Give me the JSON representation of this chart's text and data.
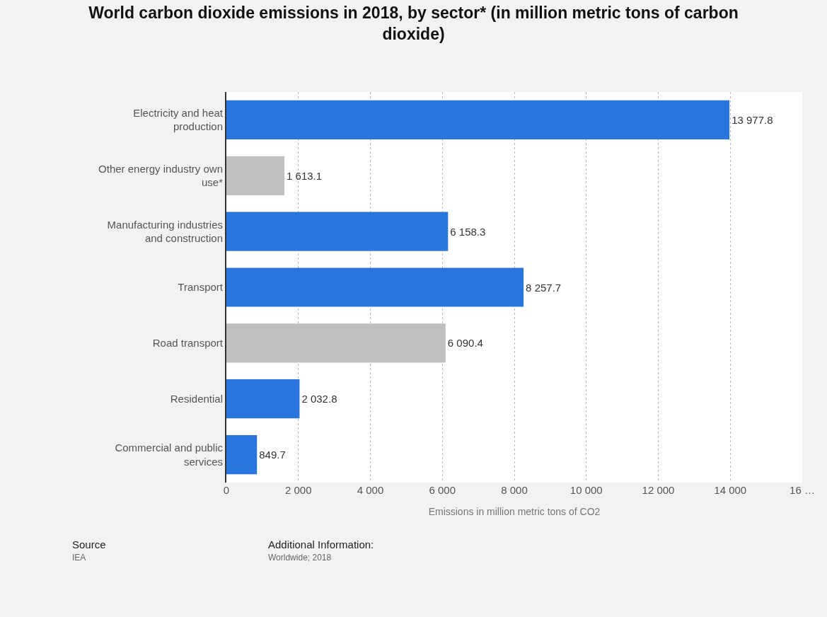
{
  "chart_data": {
    "type": "bar",
    "orientation": "horizontal",
    "title": "World carbon dioxide emissions in 2018, by sector* (in million metric tons of carbon dioxide)",
    "xlabel": "Emissions in million metric tons of CO2",
    "categories": [
      "Electricity and heat production",
      "Other energy industry own use*",
      "Manufacturing industries and construction",
      "Transport",
      "Road transport",
      "Residential",
      "Commercial and public services"
    ],
    "values": [
      13977.8,
      1613.1,
      6158.3,
      8257.7,
      6090.4,
      2032.8,
      849.7
    ],
    "colors": [
      "#2876dd",
      "#bfbfbf",
      "#2876dd",
      "#2876dd",
      "#bfbfbf",
      "#2876dd",
      "#2876dd"
    ],
    "value_labels": [
      "13 977.8",
      "1 613.1",
      "6 158.3",
      "8 257.7",
      "6 090.4",
      "2 032.8",
      "849.7"
    ],
    "xlim": [
      0,
      16000
    ],
    "xticks": [
      0,
      {
        "value": 2000,
        "label": "2 000"
      },
      {
        "value": 4000,
        "label": "4 000"
      },
      {
        "value": 6000,
        "label": "6 000"
      },
      {
        "value": 8000,
        "label": "8 000"
      },
      {
        "value": 10000,
        "label": "10 000"
      },
      {
        "value": 12000,
        "label": "12 000"
      },
      {
        "value": 14000,
        "label": "14 000"
      },
      {
        "value": 16000,
        "label": "16 …"
      }
    ],
    "grid": "x",
    "annotations": [
      "Source",
      "IEA",
      "Additional Information:",
      "Worldwide; 2018"
    ]
  }
}
